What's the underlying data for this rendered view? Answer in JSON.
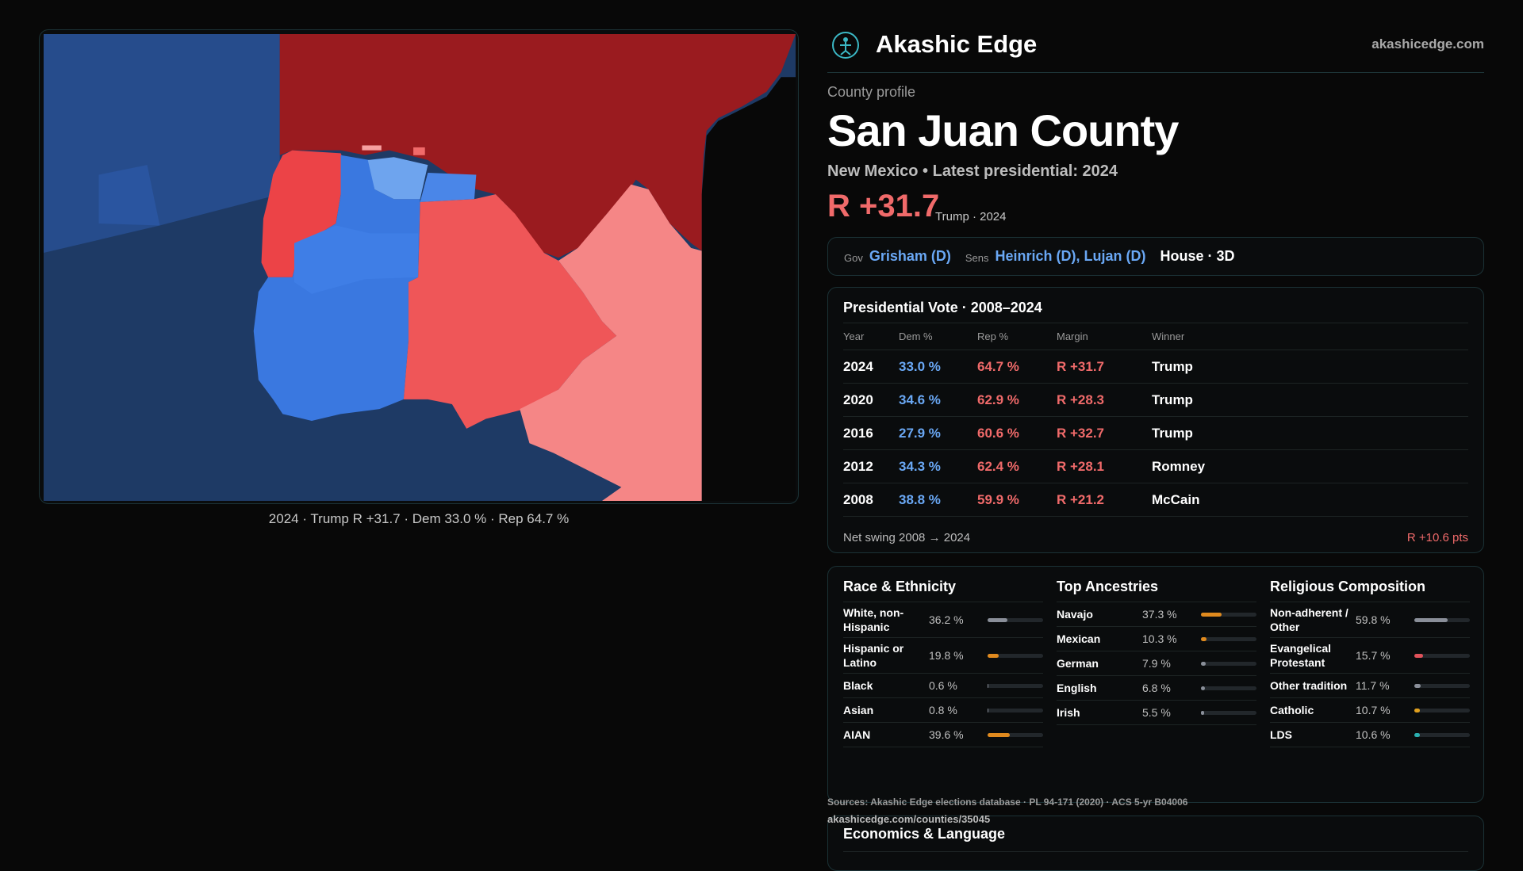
{
  "header": {
    "brand": "Akashic Edge",
    "site": "akashicedge.com"
  },
  "map": {
    "caption": "2024 · Trump R +31.7 · Dem 33.0 % · Rep 64.7 %"
  },
  "profile": {
    "eyebrow": "County profile",
    "title": "San Juan County",
    "subtitle": "New Mexico • Latest presidential: 2024",
    "margin": "R +31.7",
    "margin_note": "Trump · 2024"
  },
  "officials": {
    "gov_label": "Gov",
    "gov": "Grisham (D)",
    "sens_label": "Sens",
    "sens": "Heinrich (D), Lujan (D)",
    "house": "House · 3D"
  },
  "presidential": {
    "title": "Presidential Vote · 2008–2024",
    "columns": [
      "Year",
      "Dem %",
      "Rep %",
      "Margin",
      "Winner"
    ],
    "rows": [
      [
        "2024",
        "33.0 %",
        "64.7 %",
        "R +31.7",
        "Trump"
      ],
      [
        "2020",
        "34.6 %",
        "62.9 %",
        "R +28.3",
        "Trump"
      ],
      [
        "2016",
        "27.9 %",
        "60.6 %",
        "R +32.7",
        "Trump"
      ],
      [
        "2012",
        "34.3 %",
        "62.4 %",
        "R +28.1",
        "Romney"
      ],
      [
        "2008",
        "38.8 %",
        "59.9 %",
        "R +21.2",
        "McCain"
      ]
    ],
    "swing_label": "Net swing 2008 → 2024",
    "swing_value": "R +10.6 pts"
  },
  "demographics": [
    {
      "title": "Race & Ethnicity",
      "items": [
        {
          "label": "White, non-Hispanic",
          "value": 36.2,
          "value_label": "36.2 %",
          "color": "#8a8f99"
        },
        {
          "label": "Hispanic or Latino",
          "value": 19.8,
          "value_label": "19.8 %",
          "color": "#e08a1e"
        },
        {
          "label": "Black",
          "value": 0.6,
          "value_label": "0.6 %",
          "color": "#8a8f99"
        },
        {
          "label": "Asian",
          "value": 0.8,
          "value_label": "0.8 %",
          "color": "#8a8f99"
        },
        {
          "label": "AIAN",
          "value": 39.6,
          "value_label": "39.6 %",
          "color": "#e08a1e"
        }
      ]
    },
    {
      "title": "Top Ancestries",
      "items": [
        {
          "label": "Navajo",
          "value": 37.3,
          "value_label": "37.3 %",
          "color": "#e08a1e"
        },
        {
          "label": "Mexican",
          "value": 10.3,
          "value_label": "10.3 %",
          "color": "#e08a1e"
        },
        {
          "label": "German",
          "value": 7.9,
          "value_label": "7.9 %",
          "color": "#8a8f99"
        },
        {
          "label": "English",
          "value": 6.8,
          "value_label": "6.8 %",
          "color": "#8a8f99"
        },
        {
          "label": "Irish",
          "value": 5.5,
          "value_label": "5.5 %",
          "color": "#8a8f99"
        }
      ]
    },
    {
      "title": "Religious Composition",
      "items": [
        {
          "label": "Non-adherent / Other",
          "value": 59.8,
          "value_label": "59.8 %",
          "color": "#8a8f99"
        },
        {
          "label": "Evangelical Protestant",
          "value": 15.7,
          "value_label": "15.7 %",
          "color": "#e0525a"
        },
        {
          "label": "Other tradition",
          "value": 11.7,
          "value_label": "11.7 %",
          "color": "#8a8f99"
        },
        {
          "label": "Catholic",
          "value": 10.7,
          "value_label": "10.7 %",
          "color": "#e0a01e"
        },
        {
          "label": "LDS",
          "value": 10.6,
          "value_label": "10.6 %",
          "color": "#2ab0b0"
        }
      ]
    }
  ],
  "sources": {
    "line1": "Sources: Akashic Edge elections database · PL 94-171 (2020) · ACS 5-yr B04006",
    "line2": "akashicedge.com/counties/35045"
  },
  "economics": {
    "title": "Economics & Language"
  }
}
